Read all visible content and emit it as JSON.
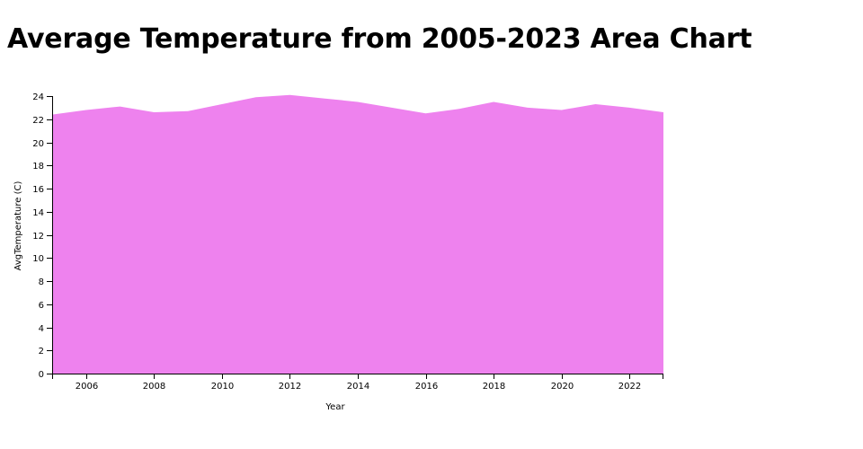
{
  "title": "Average Temperature from 2005-2023 Area Chart",
  "chart_data": {
    "type": "area",
    "title": "Average Temperature from 2005-2023 Area Chart",
    "xlabel": "Year",
    "ylabel": "AvgTemperature (C)",
    "x": [
      2005,
      2006,
      2007,
      2008,
      2009,
      2010,
      2011,
      2012,
      2013,
      2014,
      2015,
      2016,
      2017,
      2018,
      2019,
      2020,
      2021,
      2022,
      2023
    ],
    "values": [
      22.4,
      22.8,
      23.1,
      22.6,
      22.7,
      23.3,
      23.9,
      24.1,
      23.8,
      23.5,
      23.0,
      22.5,
      22.9,
      23.5,
      23.0,
      22.8,
      23.3,
      23.0,
      22.6
    ],
    "xlim": [
      2005,
      2023
    ],
    "ylim": [
      0,
      24
    ],
    "xticks": [
      "2006",
      "2008",
      "2010",
      "2012",
      "2014",
      "2016",
      "2018",
      "2020",
      "2022"
    ],
    "yticks": [
      "0",
      "2",
      "4",
      "6",
      "8",
      "10",
      "12",
      "14",
      "16",
      "18",
      "20",
      "22",
      "24"
    ],
    "fill_color": "#ee82ee",
    "grid": false,
    "legend": "none"
  }
}
